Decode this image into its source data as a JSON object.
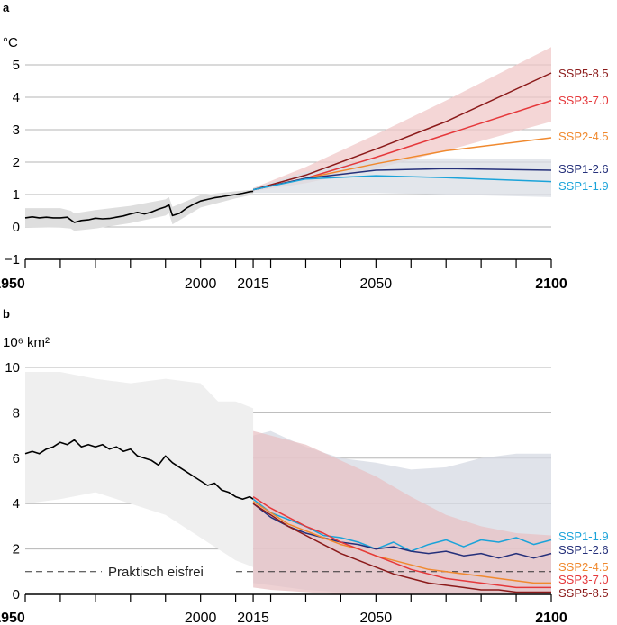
{
  "chart_data": [
    {
      "panel": "a",
      "type": "line",
      "ylabel": "°C",
      "ylim": [
        -1,
        5
      ],
      "xlim": [
        1950,
        2100
      ],
      "yticks": [
        "−1",
        "0",
        "1",
        "2",
        "3",
        "4",
        "5"
      ],
      "ytick_values": [
        -1,
        0,
        1,
        2,
        3,
        4,
        5
      ],
      "xticks": [
        {
          "label": "1950",
          "value": 1950,
          "bold": true
        },
        {
          "label": "2000",
          "value": 2000,
          "bold": false
        },
        {
          "label": "2015",
          "value": 2015,
          "bold": false
        },
        {
          "label": "2050",
          "value": 2050,
          "bold": false
        },
        {
          "label": "2100",
          "value": 2100,
          "bold": true
        }
      ],
      "grid": true,
      "historical": {
        "color": "#000000",
        "x": [
          1950,
          1952,
          1954,
          1956,
          1958,
          1960,
          1962,
          1963,
          1964,
          1966,
          1968,
          1970,
          1972,
          1974,
          1976,
          1978,
          1980,
          1982,
          1984,
          1986,
          1988,
          1990,
          1991,
          1992,
          1994,
          1996,
          1998,
          2000,
          2002,
          2004,
          2006,
          2008,
          2010,
          2012,
          2014,
          2015
        ],
        "y": [
          0.28,
          0.31,
          0.28,
          0.3,
          0.28,
          0.28,
          0.3,
          0.22,
          0.14,
          0.2,
          0.22,
          0.27,
          0.25,
          0.26,
          0.3,
          0.34,
          0.4,
          0.45,
          0.4,
          0.46,
          0.55,
          0.62,
          0.68,
          0.35,
          0.42,
          0.58,
          0.7,
          0.8,
          0.85,
          0.9,
          0.93,
          0.97,
          1.0,
          1.04,
          1.09,
          1.1
        ]
      },
      "historical_band": {
        "color": "#dedede",
        "x": [
          1950,
          1960,
          1963,
          1964,
          1970,
          1980,
          1990,
          1991,
          1992,
          2000,
          2010,
          2015
        ],
        "low": [
          0.0,
          -0.02,
          -0.05,
          -0.12,
          -0.05,
          0.12,
          0.35,
          0.42,
          0.08,
          0.6,
          0.88,
          1.0
        ],
        "high": [
          0.58,
          0.58,
          0.5,
          0.42,
          0.52,
          0.65,
          0.85,
          0.92,
          0.62,
          0.98,
          1.1,
          1.15
        ]
      },
      "projection_bands": [
        {
          "name": "high",
          "color": "#f0c8c8",
          "x": [
            2015,
            2030,
            2050,
            2070,
            2100
          ],
          "low": [
            1.1,
            1.35,
            1.8,
            2.35,
            3.25
          ],
          "high": [
            1.2,
            1.85,
            2.85,
            3.9,
            5.55
          ]
        },
        {
          "name": "low",
          "color": "#d9dde4",
          "x": [
            2015,
            2030,
            2050,
            2070,
            2100
          ],
          "low": [
            1.05,
            1.05,
            1.05,
            1.0,
            0.92
          ],
          "high": [
            1.2,
            1.7,
            2.1,
            2.12,
            2.08
          ]
        }
      ],
      "series": [
        {
          "name": "SSP5-8.5",
          "color": "#8b1a1a",
          "x": [
            2015,
            2030,
            2050,
            2070,
            2100
          ],
          "y": [
            1.15,
            1.6,
            2.4,
            3.25,
            4.75
          ]
        },
        {
          "name": "SSP3-7.0",
          "color": "#e5383b",
          "x": [
            2015,
            2030,
            2050,
            2070,
            2100
          ],
          "y": [
            1.15,
            1.5,
            2.15,
            2.85,
            3.9
          ]
        },
        {
          "name": "SSP2-4.5",
          "color": "#f0892e",
          "x": [
            2015,
            2030,
            2050,
            2070,
            2100
          ],
          "y": [
            1.15,
            1.5,
            1.95,
            2.35,
            2.75
          ]
        },
        {
          "name": "SSP1-2.6",
          "color": "#25307a",
          "x": [
            2015,
            2030,
            2050,
            2070,
            2100
          ],
          "y": [
            1.15,
            1.5,
            1.75,
            1.8,
            1.75
          ]
        },
        {
          "name": "SSP1-1.9",
          "color": "#1aa3d9",
          "x": [
            2015,
            2030,
            2050,
            2070,
            2100
          ],
          "y": [
            1.15,
            1.48,
            1.58,
            1.52,
            1.4
          ]
        }
      ]
    },
    {
      "panel": "b",
      "type": "line",
      "ylabel": "10⁶ km²",
      "ylim": [
        0,
        10
      ],
      "xlim": [
        1950,
        2100
      ],
      "yticks": [
        "0",
        "2",
        "4",
        "6",
        "8",
        "10"
      ],
      "ytick_values": [
        0,
        2,
        4,
        6,
        8,
        10
      ],
      "xticks": [
        {
          "label": "1950",
          "value": 1950,
          "bold": true
        },
        {
          "label": "2000",
          "value": 2000,
          "bold": false
        },
        {
          "label": "2015",
          "value": 2015,
          "bold": false
        },
        {
          "label": "2050",
          "value": 2050,
          "bold": false
        },
        {
          "label": "2100",
          "value": 2100,
          "bold": true
        }
      ],
      "grid": true,
      "annotation": {
        "label": "Praktisch eisfrei",
        "y": 1
      },
      "historical": {
        "color": "#000000",
        "x": [
          1950,
          1952,
          1954,
          1956,
          1958,
          1960,
          1962,
          1964,
          1966,
          1968,
          1970,
          1972,
          1974,
          1976,
          1978,
          1980,
          1982,
          1984,
          1986,
          1988,
          1990,
          1992,
          1994,
          1996,
          1998,
          2000,
          2002,
          2004,
          2006,
          2008,
          2010,
          2012,
          2014,
          2015
        ],
        "y": [
          6.2,
          6.3,
          6.2,
          6.4,
          6.5,
          6.7,
          6.6,
          6.8,
          6.5,
          6.6,
          6.5,
          6.6,
          6.4,
          6.5,
          6.3,
          6.4,
          6.1,
          6.0,
          5.9,
          5.7,
          6.1,
          5.8,
          5.6,
          5.4,
          5.2,
          5.0,
          4.8,
          4.9,
          4.6,
          4.5,
          4.3,
          4.2,
          4.3,
          4.2
        ]
      },
      "historical_band": {
        "color": "#efefef",
        "x": [
          1950,
          1960,
          1970,
          1980,
          1990,
          2000,
          2005,
          2010,
          2015
        ],
        "low": [
          4.0,
          4.2,
          4.5,
          4.0,
          3.5,
          2.5,
          2.0,
          1.5,
          1.2
        ],
        "high": [
          9.8,
          9.8,
          9.5,
          9.3,
          9.5,
          9.3,
          8.5,
          8.5,
          8.2
        ]
      },
      "projection_bands": [
        {
          "name": "low",
          "color": "#d6dae3",
          "x": [
            2015,
            2020,
            2030,
            2040,
            2050,
            2060,
            2070,
            2080,
            2090,
            2100
          ],
          "low": [
            0.5,
            0.4,
            0.2,
            0.1,
            0.0,
            0.0,
            0.0,
            0.0,
            0.0,
            0.0
          ],
          "high": [
            7.0,
            7.2,
            6.5,
            6.0,
            5.8,
            5.5,
            5.6,
            6.0,
            6.2,
            6.2
          ]
        },
        {
          "name": "high",
          "color": "#e8c2c4",
          "x": [
            2015,
            2020,
            2030,
            2040,
            2050,
            2060,
            2070,
            2080,
            2090,
            2100
          ],
          "low": [
            0.3,
            0.2,
            0.1,
            0.0,
            0.0,
            0.0,
            0.0,
            0.0,
            0.0,
            0.0
          ],
          "high": [
            7.2,
            7.0,
            6.6,
            5.9,
            5.2,
            4.3,
            3.5,
            3.0,
            2.7,
            2.6
          ]
        }
      ],
      "series": [
        {
          "name": "SSP1-1.9",
          "color": "#1aa3d9",
          "x": [
            2015,
            2020,
            2025,
            2030,
            2035,
            2040,
            2045,
            2050,
            2055,
            2060,
            2065,
            2070,
            2075,
            2080,
            2085,
            2090,
            2095,
            2100
          ],
          "y": [
            4.2,
            3.6,
            3.3,
            3.0,
            2.6,
            2.5,
            2.3,
            2.0,
            2.3,
            1.9,
            2.2,
            2.4,
            2.1,
            2.4,
            2.3,
            2.5,
            2.2,
            2.4
          ]
        },
        {
          "name": "SSP1-2.6",
          "color": "#25307a",
          "x": [
            2015,
            2020,
            2025,
            2030,
            2035,
            2040,
            2045,
            2050,
            2055,
            2060,
            2065,
            2070,
            2075,
            2080,
            2085,
            2090,
            2095,
            2100
          ],
          "y": [
            4.0,
            3.4,
            3.0,
            2.7,
            2.5,
            2.3,
            2.2,
            2.0,
            2.1,
            1.9,
            1.8,
            1.9,
            1.7,
            1.8,
            1.6,
            1.8,
            1.6,
            1.8
          ]
        },
        {
          "name": "SSP2-4.5",
          "color": "#f0892e",
          "x": [
            2015,
            2020,
            2025,
            2030,
            2035,
            2040,
            2045,
            2050,
            2055,
            2060,
            2065,
            2070,
            2075,
            2080,
            2085,
            2090,
            2095,
            2100
          ],
          "y": [
            4.1,
            3.6,
            3.1,
            2.8,
            2.5,
            2.2,
            2.0,
            1.7,
            1.5,
            1.3,
            1.1,
            1.0,
            0.9,
            0.8,
            0.7,
            0.6,
            0.5,
            0.5
          ]
        },
        {
          "name": "SSP3-7.0",
          "color": "#e5383b",
          "x": [
            2015,
            2020,
            2025,
            2030,
            2035,
            2040,
            2045,
            2050,
            2055,
            2060,
            2065,
            2070,
            2075,
            2080,
            2085,
            2090,
            2095,
            2100
          ],
          "y": [
            4.3,
            3.8,
            3.4,
            3.0,
            2.7,
            2.3,
            2.0,
            1.7,
            1.4,
            1.1,
            0.9,
            0.7,
            0.6,
            0.5,
            0.4,
            0.3,
            0.3,
            0.3
          ]
        },
        {
          "name": "SSP5-8.5",
          "color": "#8b1a1a",
          "x": [
            2015,
            2020,
            2025,
            2030,
            2035,
            2040,
            2045,
            2050,
            2055,
            2060,
            2065,
            2070,
            2075,
            2080,
            2085,
            2090,
            2095,
            2100
          ],
          "y": [
            4.0,
            3.5,
            3.0,
            2.6,
            2.2,
            1.8,
            1.5,
            1.2,
            0.9,
            0.7,
            0.5,
            0.4,
            0.3,
            0.2,
            0.2,
            0.1,
            0.1,
            0.1
          ]
        }
      ]
    }
  ]
}
